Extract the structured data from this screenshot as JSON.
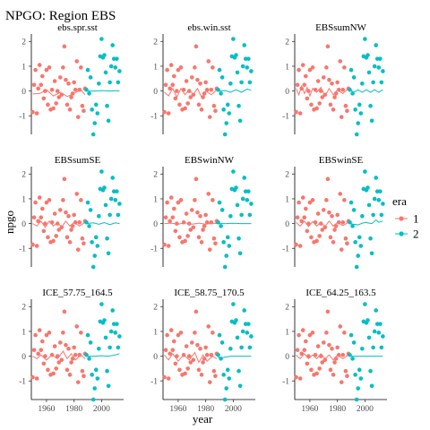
{
  "chart_data": {
    "type": "scatter",
    "title": "NPGO: Region EBS",
    "xlabel": "year",
    "ylabel": "npgo",
    "x_ticks": [
      1960,
      1980,
      2000
    ],
    "y_ticks": [
      -1,
      0,
      1,
      2
    ],
    "xlim": [
      1949,
      2016
    ],
    "ylim": [
      -1.75,
      2.3
    ],
    "legend": {
      "title": "era",
      "position": "right",
      "entries": [
        {
          "label": "1",
          "color": "#F8766D"
        },
        {
          "label": "2",
          "color": "#00BFC4"
        }
      ]
    },
    "points_era1": [
      [
        1950,
        -0.85
      ],
      [
        1951,
        0.25
      ],
      [
        1952,
        0.85
      ],
      [
        1953,
        -0.9
      ],
      [
        1954,
        0.1
      ],
      [
        1955,
        1.05
      ],
      [
        1956,
        0.25
      ],
      [
        1957,
        0.6
      ],
      [
        1958,
        -0.3
      ],
      [
        1959,
        0.0
      ],
      [
        1960,
        0.85
      ],
      [
        1961,
        -0.55
      ],
      [
        1962,
        0.95
      ],
      [
        1963,
        -0.75
      ],
      [
        1964,
        0.05
      ],
      [
        1965,
        -0.7
      ],
      [
        1966,
        0.4
      ],
      [
        1967,
        -0.5
      ],
      [
        1968,
        0.0
      ],
      [
        1969,
        -0.25
      ],
      [
        1970,
        0.55
      ],
      [
        1971,
        -0.15
      ],
      [
        1972,
        0.95
      ],
      [
        1973,
        1.8
      ],
      [
        1974,
        0.45
      ],
      [
        1975,
        -0.55
      ],
      [
        1976,
        0.3
      ],
      [
        1977,
        -0.75
      ],
      [
        1978,
        -0.25
      ],
      [
        1979,
        -0.1
      ],
      [
        1980,
        0.35
      ],
      [
        1981,
        0.05
      ],
      [
        1982,
        1.2
      ],
      [
        1983,
        -1.05
      ],
      [
        1984,
        0.05
      ],
      [
        1985,
        0.95
      ],
      [
        1986,
        -0.6
      ],
      [
        1987,
        -0.8
      ],
      [
        1988,
        0.1
      ]
    ],
    "points_era2": [
      [
        1989,
        0.05
      ],
      [
        1990,
        0.85
      ],
      [
        1991,
        -0.1
      ],
      [
        1992,
        0.55
      ],
      [
        1993,
        -0.75
      ],
      [
        1994,
        -1.75
      ],
      [
        1995,
        -1.3
      ],
      [
        1996,
        -0.55
      ],
      [
        1997,
        -0.9
      ],
      [
        1998,
        0.3
      ],
      [
        1999,
        1.4
      ],
      [
        2000,
        2.1
      ],
      [
        2001,
        1.35
      ],
      [
        2002,
        1.45
      ],
      [
        2003,
        0.75
      ],
      [
        2004,
        -0.6
      ],
      [
        2005,
        -1.2
      ],
      [
        2006,
        0.35
      ],
      [
        2007,
        1.0
      ],
      [
        2008,
        1.85
      ],
      [
        2009,
        1.3
      ],
      [
        2010,
        0.95
      ],
      [
        2011,
        1.3
      ],
      [
        2012,
        0.35
      ],
      [
        2013,
        0.8
      ]
    ],
    "panels": [
      {
        "name": "ebs.spr.sst",
        "fit_era1": [
          [
            1950,
            -0.12
          ],
          [
            1955,
            -0.1
          ],
          [
            1960,
            0.05
          ],
          [
            1965,
            -0.2
          ],
          [
            1970,
            -0.05
          ],
          [
            1975,
            -0.22
          ],
          [
            1980,
            -0.1
          ],
          [
            1985,
            0.05
          ],
          [
            1988,
            -0.15
          ]
        ],
        "fit_era2": [
          [
            1989,
            0.0
          ],
          [
            1995,
            0.0
          ],
          [
            2000,
            0.02
          ],
          [
            2005,
            0.0
          ],
          [
            2010,
            0.01
          ],
          [
            2013,
            0.0
          ]
        ]
      },
      {
        "name": "ebs.win.sst",
        "fit_era1": [
          [
            1950,
            -0.05
          ],
          [
            1953,
            -0.2
          ],
          [
            1956,
            0.1
          ],
          [
            1959,
            -0.25
          ],
          [
            1962,
            0.1
          ],
          [
            1965,
            -0.15
          ],
          [
            1968,
            0.05
          ],
          [
            1971,
            -0.15
          ],
          [
            1974,
            0.1
          ],
          [
            1977,
            -0.25
          ],
          [
            1980,
            0.0
          ],
          [
            1984,
            -0.15
          ],
          [
            1988,
            0.05
          ]
        ],
        "fit_era2": [
          [
            1989,
            0.0
          ],
          [
            1994,
            0.02
          ],
          [
            1998,
            -0.05
          ],
          [
            2002,
            0.05
          ],
          [
            2006,
            -0.05
          ],
          [
            2010,
            0.08
          ],
          [
            2013,
            0.03
          ]
        ]
      },
      {
        "name": "EBSsumNW",
        "fit_era1": [
          [
            1950,
            0.1
          ],
          [
            1952,
            -0.15
          ],
          [
            1954,
            0.2
          ],
          [
            1956,
            -0.1
          ],
          [
            1958,
            0.15
          ],
          [
            1960,
            -0.2
          ],
          [
            1962,
            0.1
          ],
          [
            1965,
            -0.05
          ],
          [
            1968,
            0.15
          ],
          [
            1971,
            -0.2
          ],
          [
            1974,
            0.1
          ],
          [
            1977,
            -0.15
          ],
          [
            1980,
            0.05
          ],
          [
            1984,
            -0.1
          ],
          [
            1988,
            0.1
          ]
        ],
        "fit_era2": [
          [
            1989,
            0.05
          ],
          [
            1992,
            -0.05
          ],
          [
            1995,
            0.05
          ],
          [
            1998,
            -0.05
          ],
          [
            2001,
            0.05
          ],
          [
            2004,
            -0.05
          ],
          [
            2007,
            0.05
          ],
          [
            2010,
            -0.05
          ],
          [
            2013,
            0.05
          ]
        ]
      },
      {
        "name": "EBSsumSE",
        "fit_era1": [
          [
            1950,
            0.0
          ],
          [
            1953,
            -0.1
          ],
          [
            1956,
            0.1
          ],
          [
            1959,
            -0.15
          ],
          [
            1962,
            0.1
          ],
          [
            1965,
            -0.1
          ],
          [
            1968,
            0.05
          ],
          [
            1971,
            -0.15
          ],
          [
            1974,
            0.1
          ],
          [
            1977,
            -0.1
          ],
          [
            1980,
            0.05
          ],
          [
            1984,
            -0.1
          ],
          [
            1988,
            0.05
          ]
        ],
        "fit_era2": [
          [
            1989,
            0.0
          ],
          [
            1994,
            0.03
          ],
          [
            1998,
            -0.03
          ],
          [
            2002,
            0.04
          ],
          [
            2006,
            -0.04
          ],
          [
            2010,
            0.03
          ],
          [
            2013,
            0.0
          ]
        ]
      },
      {
        "name": "EBSwinNW",
        "fit_era1": [
          [
            1950,
            0.0
          ],
          [
            1955,
            0.02
          ],
          [
            1960,
            -0.02
          ],
          [
            1965,
            0.03
          ],
          [
            1970,
            -0.02
          ],
          [
            1975,
            0.02
          ],
          [
            1980,
            -0.02
          ],
          [
            1985,
            0.01
          ],
          [
            1988,
            0.0
          ]
        ],
        "fit_era2": [
          [
            1989,
            0.0
          ],
          [
            1995,
            0.0
          ],
          [
            2000,
            0.01
          ],
          [
            2005,
            0.0
          ],
          [
            2010,
            0.0
          ],
          [
            2013,
            0.0
          ]
        ]
      },
      {
        "name": "EBSwinSE",
        "fit_era1": [
          [
            1950,
            0.05
          ],
          [
            1953,
            -0.1
          ],
          [
            1956,
            0.1
          ],
          [
            1959,
            -0.12
          ],
          [
            1962,
            0.08
          ],
          [
            1965,
            -0.1
          ],
          [
            1968,
            0.05
          ],
          [
            1971,
            -0.12
          ],
          [
            1974,
            0.1
          ],
          [
            1977,
            -0.1
          ],
          [
            1980,
            0.05
          ],
          [
            1984,
            -0.08
          ],
          [
            1988,
            0.05
          ]
        ],
        "fit_era2": [
          [
            1989,
            0.0
          ],
          [
            1995,
            -0.05
          ],
          [
            2000,
            0.05
          ],
          [
            2005,
            0.0
          ],
          [
            2008,
            0.15
          ],
          [
            2010,
            0.05
          ],
          [
            2013,
            0.1
          ]
        ]
      },
      {
        "name": "ICE_57.75_164.5",
        "fit_era1": [
          [
            1950,
            0.0
          ],
          [
            1953,
            -0.1
          ],
          [
            1956,
            0.05
          ],
          [
            1960,
            -0.15
          ],
          [
            1964,
            0.05
          ],
          [
            1968,
            -0.1
          ],
          [
            1972,
            0.2
          ],
          [
            1975,
            -0.1
          ],
          [
            1978,
            0.1
          ],
          [
            1981,
            -0.15
          ],
          [
            1985,
            0.05
          ],
          [
            1988,
            -0.1
          ]
        ],
        "fit_era2": [
          [
            1989,
            0.0
          ],
          [
            1995,
            0.0
          ],
          [
            2000,
            0.02
          ],
          [
            2005,
            0.0
          ],
          [
            2010,
            0.05
          ],
          [
            2013,
            0.1
          ]
        ]
      },
      {
        "name": "ICE_58.75_170.5",
        "fit_era1": [
          [
            1950,
            0.05
          ],
          [
            1953,
            -0.15
          ],
          [
            1956,
            0.1
          ],
          [
            1960,
            -0.2
          ],
          [
            1964,
            0.05
          ],
          [
            1968,
            -0.15
          ],
          [
            1972,
            0.15
          ],
          [
            1975,
            -0.25
          ],
          [
            1978,
            0.05
          ],
          [
            1981,
            -0.2
          ],
          [
            1985,
            0.0
          ],
          [
            1988,
            -0.1
          ]
        ],
        "fit_era2": [
          [
            1989,
            -0.05
          ],
          [
            1993,
            -0.05
          ],
          [
            1998,
            0.0
          ],
          [
            2003,
            0.0
          ],
          [
            2008,
            0.0
          ],
          [
            2013,
            0.0
          ]
        ]
      },
      {
        "name": "ICE_64.25_163.5",
        "fit_era1": [
          [
            1950,
            0.05
          ],
          [
            1953,
            -0.1
          ],
          [
            1956,
            0.1
          ],
          [
            1959,
            -0.1
          ],
          [
            1962,
            0.05
          ],
          [
            1965,
            -0.1
          ],
          [
            1968,
            0.1
          ],
          [
            1971,
            -0.1
          ],
          [
            1974,
            0.05
          ],
          [
            1977,
            -0.15
          ],
          [
            1980,
            0.05
          ],
          [
            1984,
            -0.1
          ],
          [
            1988,
            0.05
          ]
        ],
        "fit_era2": [
          [
            1989,
            0.0
          ],
          [
            1995,
            0.0
          ],
          [
            2000,
            0.0
          ],
          [
            2005,
            0.0
          ],
          [
            2010,
            0.0
          ],
          [
            2013,
            0.0
          ]
        ]
      }
    ]
  }
}
